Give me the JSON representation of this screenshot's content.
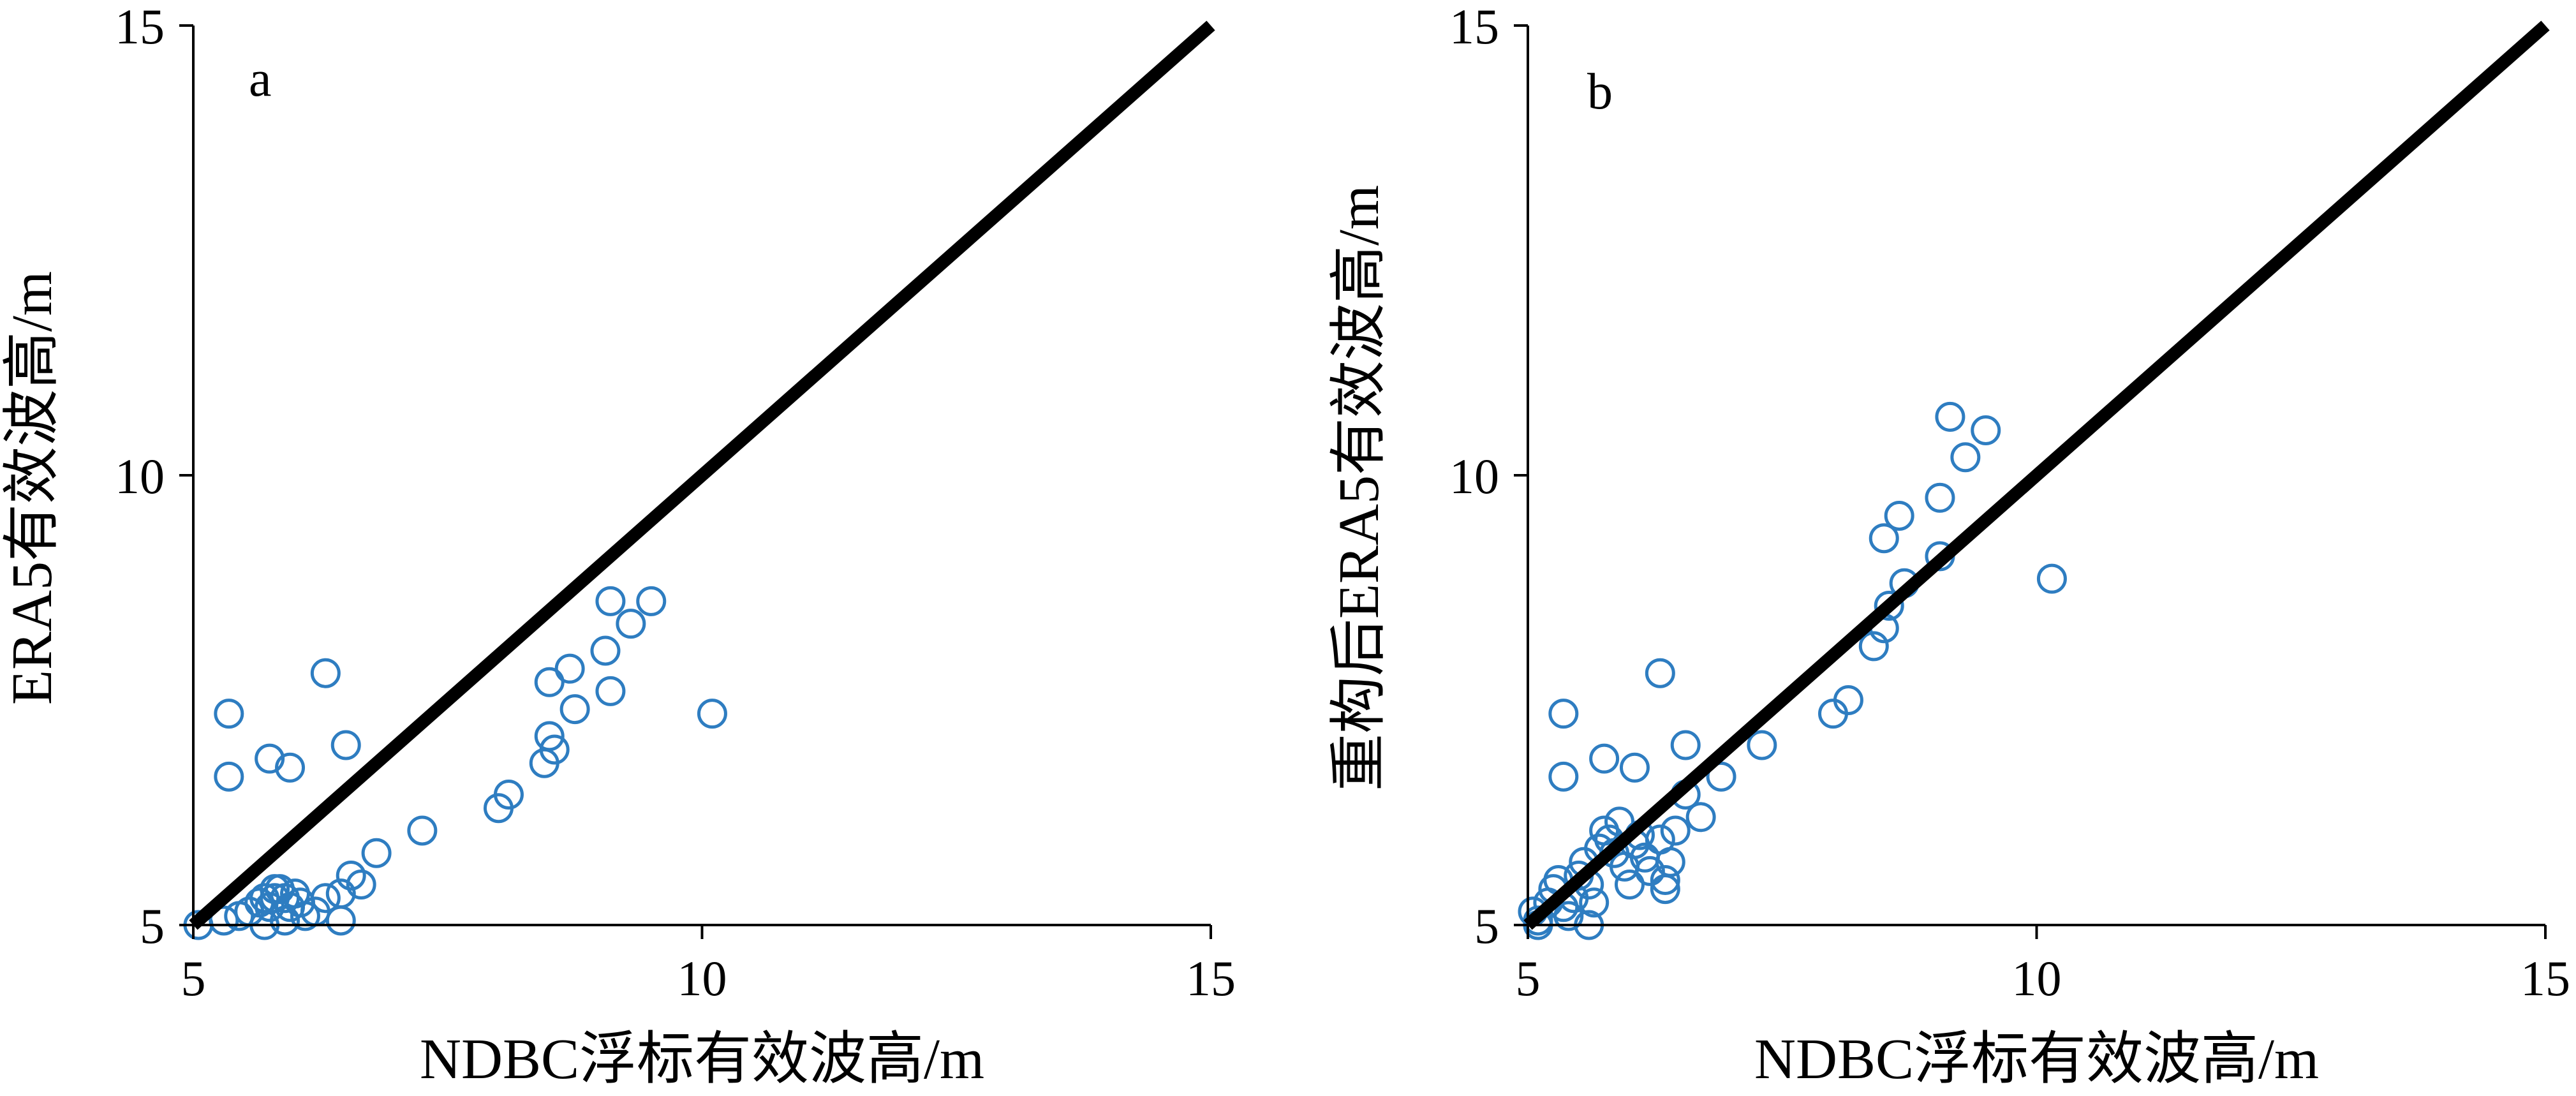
{
  "chart_data": [
    {
      "type": "scatter",
      "panel_label": "a",
      "xlabel": "NDBC浮标有效波高/m",
      "ylabel": "ERA5有效波高/m",
      "xlim": [
        5,
        15
      ],
      "ylim": [
        5,
        15
      ],
      "xticks": [
        "5",
        "10",
        "15"
      ],
      "yticks": [
        "5",
        "10",
        "15"
      ],
      "reference_line": {
        "x": [
          5,
          15
        ],
        "y": [
          5,
          15
        ],
        "color": "#000000"
      },
      "marker_color": "#2e7dc1",
      "points": [
        [
          5.05,
          5.0
        ],
        [
          5.3,
          5.05
        ],
        [
          5.45,
          5.1
        ],
        [
          5.55,
          5.15
        ],
        [
          5.65,
          5.25
        ],
        [
          5.7,
          5.3
        ],
        [
          5.75,
          5.2
        ],
        [
          5.8,
          5.3
        ],
        [
          5.85,
          5.4
        ],
        [
          5.9,
          5.3
        ],
        [
          5.95,
          5.2
        ],
        [
          6.0,
          5.35
        ],
        [
          6.05,
          5.25
        ],
        [
          6.1,
          5.1
        ],
        [
          6.2,
          5.15
        ],
        [
          6.3,
          5.3
        ],
        [
          6.45,
          5.35
        ],
        [
          6.45,
          5.05
        ],
        [
          6.55,
          5.55
        ],
        [
          6.65,
          5.45
        ],
        [
          6.8,
          5.8
        ],
        [
          7.25,
          6.05
        ],
        [
          5.35,
          7.35
        ],
        [
          5.35,
          6.65
        ],
        [
          5.75,
          6.85
        ],
        [
          5.95,
          6.75
        ],
        [
          6.3,
          7.8
        ],
        [
          6.5,
          7.0
        ],
        [
          8.0,
          6.3
        ],
        [
          8.1,
          6.45
        ],
        [
          8.45,
          6.8
        ],
        [
          8.5,
          7.1
        ],
        [
          8.55,
          6.95
        ],
        [
          8.5,
          7.7
        ],
        [
          8.7,
          7.85
        ],
        [
          8.75,
          7.4
        ],
        [
          9.1,
          7.6
        ],
        [
          9.05,
          8.05
        ],
        [
          9.1,
          8.6
        ],
        [
          9.3,
          8.35
        ],
        [
          9.5,
          8.6
        ],
        [
          10.1,
          7.35
        ],
        [
          5.8,
          5.4
        ],
        [
          5.9,
          5.05
        ],
        [
          5.7,
          5.0
        ]
      ]
    },
    {
      "type": "scatter",
      "panel_label": "b",
      "xlabel": "NDBC浮标有效波高/m",
      "ylabel": "重构后ERA5有效波高/m",
      "xlim": [
        5,
        15
      ],
      "ylim": [
        5,
        15
      ],
      "xticks": [
        "5",
        "10",
        "15"
      ],
      "yticks": [
        "5",
        "10",
        "15"
      ],
      "reference_line": {
        "x": [
          5,
          15
        ],
        "y": [
          5,
          15
        ],
        "color": "#000000"
      },
      "marker_color": "#2e7dc1",
      "points": [
        [
          5.05,
          5.15
        ],
        [
          5.1,
          5.05
        ],
        [
          5.2,
          5.25
        ],
        [
          5.25,
          5.4
        ],
        [
          5.3,
          5.5
        ],
        [
          5.35,
          5.2
        ],
        [
          5.4,
          5.1
        ],
        [
          5.45,
          5.3
        ],
        [
          5.5,
          5.55
        ],
        [
          5.55,
          5.7
        ],
        [
          5.6,
          5.45
        ],
        [
          5.65,
          5.25
        ],
        [
          5.7,
          5.85
        ],
        [
          5.75,
          6.05
        ],
        [
          5.8,
          5.95
        ],
        [
          5.85,
          5.8
        ],
        [
          5.9,
          6.15
        ],
        [
          5.95,
          5.65
        ],
        [
          6.0,
          5.45
        ],
        [
          6.05,
          5.9
        ],
        [
          6.1,
          6.0
        ],
        [
          6.15,
          5.75
        ],
        [
          6.2,
          5.6
        ],
        [
          6.3,
          5.95
        ],
        [
          6.35,
          5.5
        ],
        [
          6.4,
          5.7
        ],
        [
          6.45,
          6.05
        ],
        [
          6.55,
          6.45
        ],
        [
          6.7,
          6.2
        ],
        [
          6.9,
          6.65
        ],
        [
          7.3,
          7.0
        ],
        [
          5.35,
          7.35
        ],
        [
          5.35,
          6.65
        ],
        [
          5.75,
          6.85
        ],
        [
          6.05,
          6.75
        ],
        [
          6.3,
          7.8
        ],
        [
          6.55,
          7.0
        ],
        [
          8.0,
          7.35
        ],
        [
          8.15,
          7.5
        ],
        [
          8.4,
          8.1
        ],
        [
          8.5,
          8.3
        ],
        [
          8.55,
          8.55
        ],
        [
          8.5,
          9.3
        ],
        [
          8.7,
          8.8
        ],
        [
          8.65,
          9.55
        ],
        [
          9.05,
          9.1
        ],
        [
          9.05,
          9.75
        ],
        [
          9.15,
          10.65
        ],
        [
          9.3,
          10.2
        ],
        [
          9.5,
          10.5
        ],
        [
          10.15,
          8.85
        ],
        [
          5.1,
          5.0
        ],
        [
          5.6,
          5.0
        ],
        [
          6.35,
          5.4
        ]
      ]
    }
  ]
}
